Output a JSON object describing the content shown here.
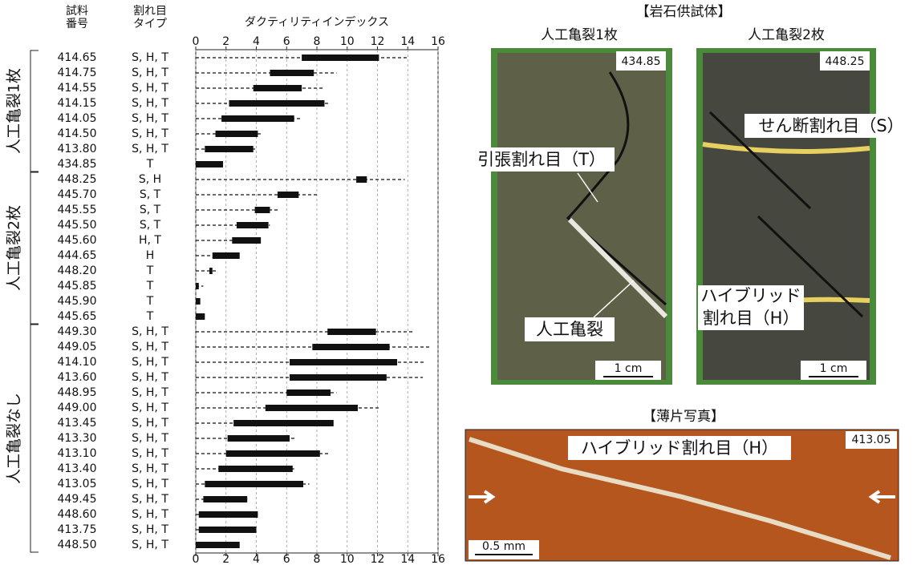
{
  "chart_data": {
    "type": "range",
    "header_id": [
      "試料",
      "番号"
    ],
    "header_type": [
      "割れ目",
      "タイプ"
    ],
    "x_label": "ダクティリティインデックス",
    "xlim": [
      0,
      16
    ],
    "xticks": [
      0,
      2,
      4,
      6,
      8,
      10,
      12,
      14,
      16
    ],
    "grid": true,
    "groups": [
      {
        "label": "人工亀裂1枚",
        "samples": [
          {
            "id": "414.65",
            "type": "S, H, T",
            "min": 0,
            "q1": 7.0,
            "q3": 12.1,
            "max": 14.0
          },
          {
            "id": "414.75",
            "type": "S, H, T",
            "min": 0,
            "q1": 4.9,
            "q3": 7.8,
            "max": 9.3
          },
          {
            "id": "414.55",
            "type": "S, H, T",
            "min": 0,
            "q1": 3.8,
            "q3": 7.0,
            "max": 8.5
          },
          {
            "id": "414.15",
            "type": "S, H, T",
            "min": 0,
            "q1": 2.2,
            "q3": 8.5,
            "max": 8.8
          },
          {
            "id": "414.05",
            "type": "S, H, T",
            "min": 0,
            "q1": 1.7,
            "q3": 6.5,
            "max": 7.0
          },
          {
            "id": "414.50",
            "type": "S, H, T",
            "min": 0,
            "q1": 1.3,
            "q3": 4.1,
            "max": 4.3
          },
          {
            "id": "413.80",
            "type": "S, H, T",
            "min": 0,
            "q1": 0.6,
            "q3": 3.8,
            "max": 4.0
          },
          {
            "id": "434.85",
            "type": "T",
            "min": 0,
            "q1": 0,
            "q3": 1.8,
            "max": 1.8
          }
        ]
      },
      {
        "label": "人工亀裂2枚",
        "samples": [
          {
            "id": "448.25",
            "type": "S, H",
            "min": 0,
            "q1": 10.6,
            "q3": 11.3,
            "max": 13.8
          },
          {
            "id": "445.70",
            "type": "S, T",
            "min": 0,
            "q1": 5.4,
            "q3": 6.8,
            "max": 8.1
          },
          {
            "id": "445.55",
            "type": "S, T",
            "min": 0,
            "q1": 3.9,
            "q3": 4.9,
            "max": 5.5
          },
          {
            "id": "445.50",
            "type": "S, T",
            "min": 0,
            "q1": 2.7,
            "q3": 4.8,
            "max": 4.9
          },
          {
            "id": "445.60",
            "type": "H, T",
            "min": 0,
            "q1": 2.4,
            "q3": 4.3,
            "max": 4.3
          },
          {
            "id": "444.65",
            "type": "H",
            "min": 0,
            "q1": 1.1,
            "q3": 2.9,
            "max": 2.9
          },
          {
            "id": "448.20",
            "type": "T",
            "min": 0,
            "q1": 0.9,
            "q3": 1.1,
            "max": 1.4
          },
          {
            "id": "445.85",
            "type": "T",
            "min": 0,
            "q1": 0,
            "q3": 0.2,
            "max": 0.5
          },
          {
            "id": "445.90",
            "type": "T",
            "min": 0,
            "q1": 0,
            "q3": 0.3,
            "max": 0.3
          },
          {
            "id": "445.65",
            "type": "T",
            "min": 0,
            "q1": 0,
            "q3": 0.6,
            "max": 0.6
          }
        ]
      },
      {
        "label": "人工亀裂なし",
        "samples": [
          {
            "id": "449.30",
            "type": "S, H, T",
            "min": 0,
            "q1": 8.7,
            "q3": 11.9,
            "max": 14.4
          },
          {
            "id": "449.05",
            "type": "S, H, T",
            "min": 0,
            "q1": 7.7,
            "q3": 12.8,
            "max": 15.5
          },
          {
            "id": "414.10",
            "type": "S, H, T",
            "min": 0,
            "q1": 6.2,
            "q3": 13.3,
            "max": 15.2
          },
          {
            "id": "413.60",
            "type": "S, H, T",
            "min": 0,
            "q1": 6.2,
            "q3": 12.6,
            "max": 15.0
          },
          {
            "id": "448.95",
            "type": "S, H, T",
            "min": 0,
            "q1": 6.0,
            "q3": 8.9,
            "max": 9.3
          },
          {
            "id": "449.00",
            "type": "S, H, T",
            "min": 0,
            "q1": 4.6,
            "q3": 10.7,
            "max": 12.1
          },
          {
            "id": "413.45",
            "type": "S, H, T",
            "min": 0,
            "q1": 2.5,
            "q3": 9.1,
            "max": 9.1
          },
          {
            "id": "413.30",
            "type": "S, H, T",
            "min": 0,
            "q1": 2.1,
            "q3": 6.2,
            "max": 6.6
          },
          {
            "id": "413.10",
            "type": "S, H, T",
            "min": 0,
            "q1": 2.0,
            "q3": 8.2,
            "max": 8.8
          },
          {
            "id": "413.40",
            "type": "S, H, T",
            "min": 0,
            "q1": 1.5,
            "q3": 6.4,
            "max": 6.5
          },
          {
            "id": "413.05",
            "type": "S, H, T",
            "min": 0,
            "q1": 0.6,
            "q3": 7.1,
            "max": 7.5
          },
          {
            "id": "449.45",
            "type": "S, H, T",
            "min": 0,
            "q1": 0.5,
            "q3": 3.4,
            "max": 3.4
          },
          {
            "id": "448.60",
            "type": "S, H, T",
            "min": 0,
            "q1": 0.2,
            "q3": 4.1,
            "max": 4.1
          },
          {
            "id": "413.75",
            "type": "S, H, T",
            "min": 0,
            "q1": 0.2,
            "q3": 4.0,
            "max": 4.0
          },
          {
            "id": "448.50",
            "type": "S, H, T",
            "min": 0,
            "q1": 0,
            "q3": 2.9,
            "max": 2.9
          }
        ]
      }
    ]
  },
  "photos": {
    "title": "【岩石供試体】",
    "left": {
      "title": "人工亀裂1枚",
      "sample": "434.85",
      "tension": "引張割れ目（T）",
      "artificial": "人工亀裂",
      "scale": "1 cm"
    },
    "right": {
      "title": "人工亀裂2枚",
      "sample": "448.25",
      "shear": "せん断割れ目（S）",
      "hybrid": [
        "ハイブリッド",
        "割れ目（H）"
      ],
      "scale": "1 cm"
    },
    "thin": {
      "title": "【薄片写真】",
      "label": "ハイブリッド割れ目（H）",
      "sample": "413.05",
      "scale": "0.5 mm"
    }
  }
}
